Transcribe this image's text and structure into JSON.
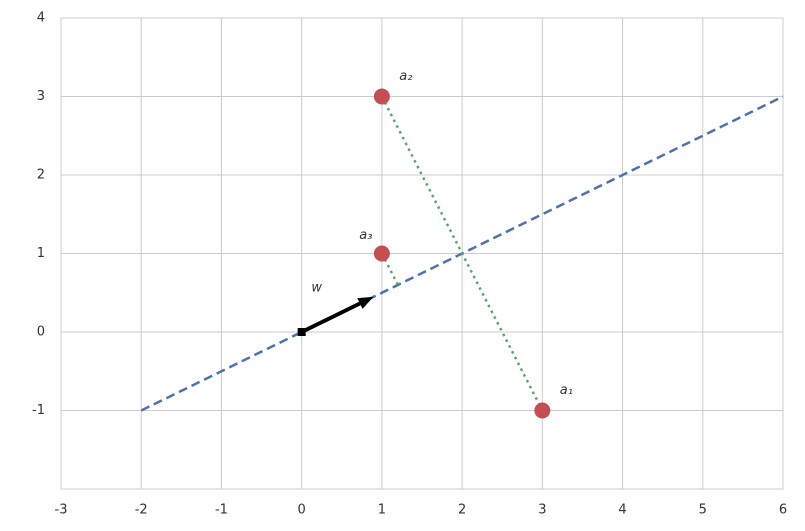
{
  "chart_data": {
    "type": "scatter",
    "xlim": [
      -3,
      6
    ],
    "ylim": [
      -2,
      4
    ],
    "xticks": [
      -3,
      -2,
      -1,
      0,
      1,
      2,
      3,
      4,
      5,
      6
    ],
    "yticks": [
      -1,
      0,
      1,
      2,
      3,
      4
    ],
    "grid": true,
    "points": {
      "x": [
        3,
        1,
        1
      ],
      "y": [
        -1,
        3,
        1
      ],
      "labels": [
        "a₁",
        "a₂",
        "a₃"
      ],
      "color": "#c44e52"
    },
    "lines": [
      {
        "x": [
          -2,
          6
        ],
        "y": [
          -1,
          3
        ],
        "color": "#4c72b0",
        "style": "dashed"
      },
      {
        "x": [
          1,
          3
        ],
        "y": [
          3,
          -1
        ],
        "color": "#55a868",
        "style": "dotted"
      },
      {
        "x": [
          1,
          1.2
        ],
        "y": [
          1,
          0.6
        ],
        "color": "#55a868",
        "style": "dotted"
      }
    ],
    "arrow": {
      "x": [
        0,
        0.894
      ],
      "y": [
        0,
        0.447
      ],
      "label": "w",
      "color": "#000000"
    }
  }
}
